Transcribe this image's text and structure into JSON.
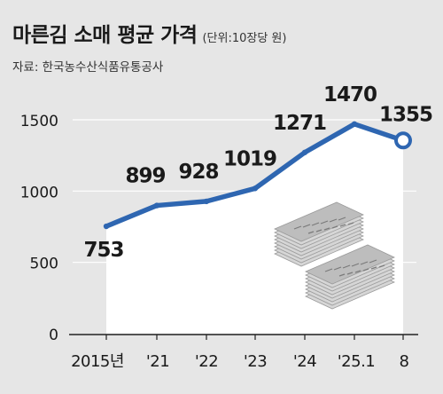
{
  "header": {
    "title": "마른김 소매 평균 가격",
    "unit": "(단위:10장당 원)",
    "source": "자료: 한국농수산식품유통공사"
  },
  "chart_data": {
    "type": "line",
    "title": "마른김 소매 평균 가격",
    "subtitle": "(단위:10장당 원)",
    "source": "자료: 한국농수산식품유통공사",
    "categories": [
      "2015년",
      "'21",
      "'22",
      "'23",
      "'24",
      "'25.1",
      "8"
    ],
    "series": [
      {
        "values": [
          753,
          899,
          928,
          1019,
          1271,
          1470,
          1355
        ]
      }
    ],
    "data_labels": [
      "753",
      "899",
      "928",
      "1019",
      "1271",
      "1470",
      "1355"
    ],
    "y_ticks": [
      0,
      500,
      1000,
      1500
    ],
    "ylim": [
      0,
      1500
    ],
    "grid": true,
    "line_color": "#2e66b1",
    "fill_color": "#ffffff",
    "background_color": "#e6e6e6",
    "gridline_color": "#ffffff",
    "decoration": "seaweed-sheets-illustration"
  }
}
